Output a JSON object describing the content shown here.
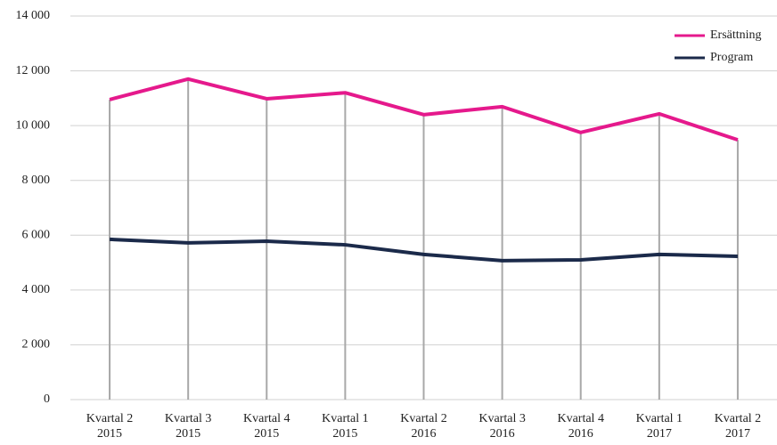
{
  "chart_data": {
    "type": "line",
    "categories": [
      "Kvartal 2 2015",
      "Kvartal 3 2015",
      "Kvartal 4 2015",
      "Kvartal 1 2015",
      "Kvartal 2 2016",
      "Kvartal 3 2016",
      "Kvartal 4 2016",
      "Kvartal 1 2017",
      "Kvartal 2 2017"
    ],
    "series": [
      {
        "name": "Ersättning",
        "color": "#e5198c",
        "values": [
          10950,
          11700,
          10980,
          11200,
          10400,
          10690,
          9750,
          10430,
          9480
        ]
      },
      {
        "name": "Program",
        "color": "#1b2a4a",
        "values": [
          5850,
          5720,
          5780,
          5650,
          5300,
          5070,
          5100,
          5300,
          5230
        ]
      }
    ],
    "ylim": [
      0,
      14000
    ],
    "yticks": [
      0,
      {
        "value": 2000,
        "label": "2 000"
      },
      {
        "value": 4000,
        "label": "4 000"
      },
      {
        "value": 6000,
        "label": "6 000"
      },
      {
        "value": 8000,
        "label": "8 000"
      },
      {
        "value": 10000,
        "label": "10 000"
      },
      {
        "value": 12000,
        "label": "12 000"
      },
      {
        "value": 14000,
        "label": "14 000"
      }
    ],
    "grid": true,
    "drop_lines": true,
    "legend": "upper right"
  }
}
